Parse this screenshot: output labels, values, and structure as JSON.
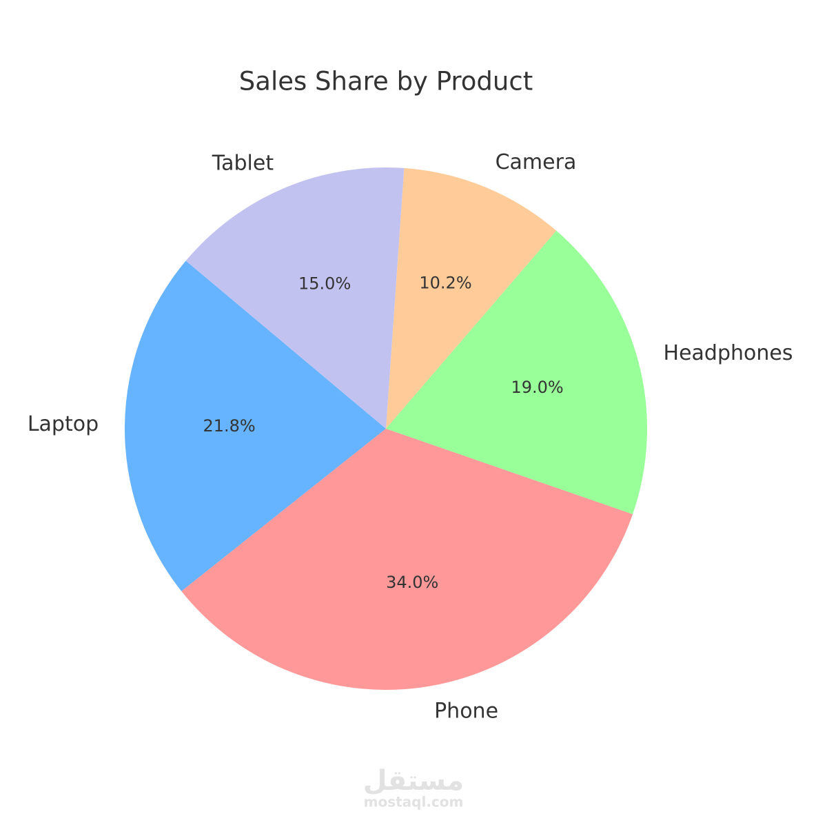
{
  "chart_data": {
    "type": "pie",
    "title": "Sales Share by Product",
    "categories": [
      "Laptop",
      "Phone",
      "Headphones",
      "Camera",
      "Tablet"
    ],
    "values": [
      21.8,
      34.0,
      19.0,
      10.2,
      15.0
    ],
    "value_labels": [
      "21.8%",
      "34.0%",
      "19.0%",
      "10.2%",
      "15.0%"
    ],
    "colors": [
      "#66b3ff",
      "#ff9999",
      "#99ff99",
      "#ffcc99",
      "#c2c2f0"
    ],
    "start_angle": 140
  },
  "watermark": {
    "logo": "مستقل",
    "text": "mostaql.com"
  }
}
